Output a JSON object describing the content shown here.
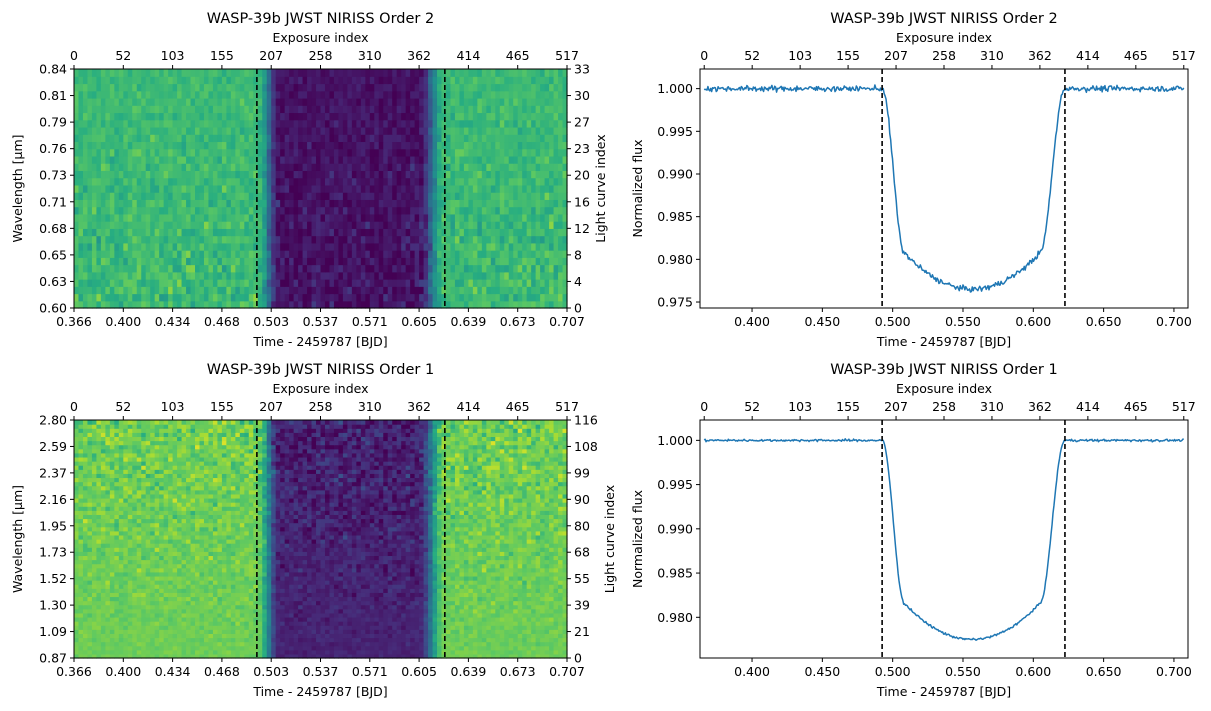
{
  "chart_data": [
    {
      "type": "heatmap",
      "title": "WASP-39b JWST NIRISS Order 2",
      "xlabel": "Time - 2459787 [BJD]",
      "ylabel": "Wavelength [$\\mu$m]",
      "ylabel_display": "Wavelength [μm]",
      "top_xlabel": "Exposure index",
      "right_ylabel": "Light curve index",
      "xlim": [
        0.366,
        0.707
      ],
      "ylim": [
        0.6,
        0.84
      ],
      "xticks": [
        "0.366",
        "0.400",
        "0.434",
        "0.468",
        "0.503",
        "0.537",
        "0.571",
        "0.605",
        "0.639",
        "0.673",
        "0.707"
      ],
      "yticks": [
        "0.60",
        "0.63",
        "0.65",
        "0.68",
        "0.71",
        "0.73",
        "0.76",
        "0.79",
        "0.81",
        "0.84"
      ],
      "top_xticks": [
        "0",
        "52",
        "103",
        "155",
        "207",
        "258",
        "310",
        "362",
        "414",
        "465",
        "517"
      ],
      "right_yticks": [
        "0",
        "4",
        "8",
        "12",
        "16",
        "20",
        "23",
        "27",
        "30",
        "33"
      ],
      "vlines": [
        0.4925,
        0.6225
      ],
      "colormap": "viridis",
      "transit": {
        "ingress_start": 0.4925,
        "ingress_end": 0.5085,
        "egress_start": 0.6045,
        "egress_end": 0.6225
      },
      "columns": 110,
      "rows": 33,
      "noise_top": 0.08,
      "noise_bottom": 0.16,
      "values": [],
      "baseline_level": 0.68,
      "transit_level": 0.05
    },
    {
      "type": "line",
      "title": "WASP-39b JWST NIRISS Order 2",
      "xlabel": "Time - 2459787 [BJD]",
      "ylabel": "Normalized flux",
      "top_xlabel": "Exposure index",
      "xlim": [
        0.363,
        0.71
      ],
      "ylim": [
        0.9743,
        1.0023
      ],
      "xticks": [
        0.4,
        0.45,
        0.5,
        0.55,
        0.6,
        0.65,
        0.7
      ],
      "xtick_labels": [
        "0.400",
        "0.450",
        "0.500",
        "0.550",
        "0.600",
        "0.650",
        "0.700"
      ],
      "yticks": [
        0.975,
        0.98,
        0.985,
        0.99,
        0.995,
        1.0
      ],
      "ytick_labels": [
        "0.975",
        "0.980",
        "0.985",
        "0.990",
        "0.995",
        "1.000"
      ],
      "top_xticks": [
        "0",
        "52",
        "103",
        "155",
        "207",
        "258",
        "310",
        "362",
        "414",
        "465",
        "517"
      ],
      "vlines": [
        0.4925,
        0.6225
      ],
      "color": "#1f77b4",
      "transit": {
        "t1": 0.4925,
        "t2": 0.5085,
        "t3": 0.6045,
        "t4": 0.6225,
        "depth": 0.0235
      },
      "noise": 0.0005,
      "x": [],
      "y": []
    },
    {
      "type": "heatmap",
      "title": "WASP-39b JWST NIRISS Order 1",
      "xlabel": "Time - 2459787 [BJD]",
      "ylabel": "Wavelength [$\\mu$m]",
      "ylabel_display": "Wavelength [μm]",
      "top_xlabel": "Exposure index",
      "right_ylabel": "Light curve index",
      "xlim": [
        0.366,
        0.707
      ],
      "ylim": [
        0.87,
        2.8
      ],
      "xticks": [
        "0.366",
        "0.400",
        "0.434",
        "0.468",
        "0.503",
        "0.537",
        "0.571",
        "0.605",
        "0.639",
        "0.673",
        "0.707"
      ],
      "yticks": [
        "0.87",
        "1.09",
        "1.30",
        "1.52",
        "1.73",
        "1.95",
        "2.16",
        "2.37",
        "2.59",
        "2.80"
      ],
      "top_xticks": [
        "0",
        "52",
        "103",
        "155",
        "207",
        "258",
        "310",
        "362",
        "414",
        "465",
        "517"
      ],
      "right_yticks": [
        "0",
        "21",
        "39",
        "55",
        "68",
        "80",
        "90",
        "99",
        "108",
        "116"
      ],
      "vlines": [
        0.4925,
        0.6225
      ],
      "colormap": "viridis",
      "transit": {
        "ingress_start": 0.4925,
        "ingress_end": 0.5085,
        "egress_start": 0.6045,
        "egress_end": 0.6225
      },
      "columns": 110,
      "rows": 58,
      "noise_top": 0.2,
      "noise_bottom": 0.05,
      "values": [],
      "baseline_level": 0.78,
      "transit_level": 0.1
    },
    {
      "type": "line",
      "title": "WASP-39b JWST NIRISS Order 1",
      "xlabel": "Time - 2459787 [BJD]",
      "ylabel": "Normalized flux",
      "top_xlabel": "Exposure index",
      "xlim": [
        0.363,
        0.71
      ],
      "ylim": [
        0.9754,
        1.0023
      ],
      "xticks": [
        0.4,
        0.45,
        0.5,
        0.55,
        0.6,
        0.65,
        0.7
      ],
      "xtick_labels": [
        "0.400",
        "0.450",
        "0.500",
        "0.550",
        "0.600",
        "0.650",
        "0.700"
      ],
      "yticks": [
        0.98,
        0.985,
        0.99,
        0.995,
        1.0
      ],
      "ytick_labels": [
        "0.980",
        "0.985",
        "0.990",
        "0.995",
        "1.000"
      ],
      "top_xticks": [
        "0",
        "52",
        "103",
        "155",
        "207",
        "258",
        "310",
        "362",
        "414",
        "465",
        "517"
      ],
      "vlines": [
        0.4925,
        0.6225
      ],
      "color": "#1f77b4",
      "transit": {
        "t1": 0.4925,
        "t2": 0.5085,
        "t3": 0.6045,
        "t4": 0.6225,
        "depth": 0.0225
      },
      "noise": 0.0002,
      "x": [],
      "y": []
    }
  ]
}
